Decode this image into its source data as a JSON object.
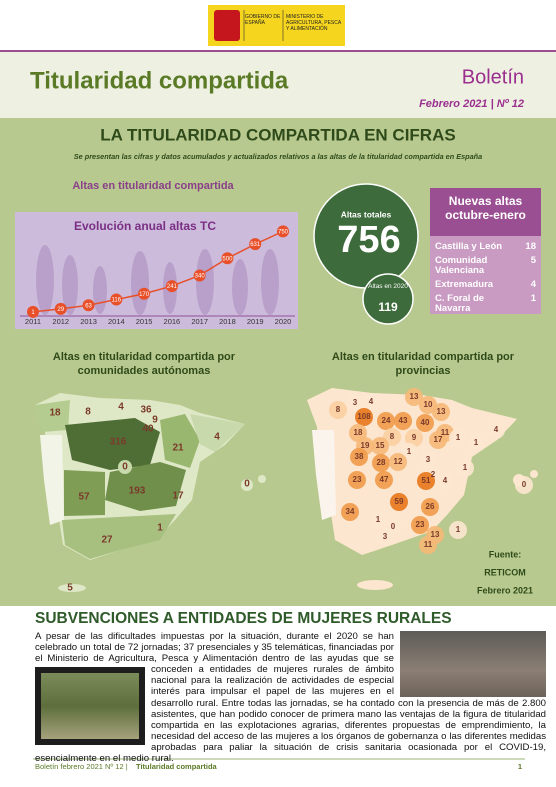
{
  "header": {
    "logo_left": "GOBIERNO DE ESPAÑA",
    "logo_right": "MINISTERIO DE AGRICULTURA, PESCA Y ALIMENTACIÓN",
    "title": "Titularidad compartida",
    "kind": "Boletín",
    "issue": "Febrero 2021 | Nº 12"
  },
  "cifras": {
    "title": "LA TITULARIDAD COMPARTIDA EN CIFRAS",
    "subtitle": "Se presentan las cifras y datos acumulados y actualizados relativos a las altas de la titularidad compartida en España",
    "altas_heading": "Altas en titularidad compartida",
    "total_label": "Altas totales",
    "total": 756,
    "year_label": "Altas en 2020",
    "year_total": 119,
    "nuevas": {
      "title": "Nuevas altas octubre-enero",
      "rows": [
        [
          "Castilla y León",
          18
        ],
        [
          "Comunidad Valenciana",
          5
        ],
        [
          "Extremadura",
          4
        ],
        [
          "C. Foral de Navarra",
          1
        ]
      ]
    }
  },
  "chart_data": {
    "type": "line",
    "title": "Evolución anual altas TC",
    "categories": [
      "2011",
      "2012",
      "2013",
      "2014",
      "2015",
      "2016",
      "2017",
      "2018",
      "2019",
      "2020"
    ],
    "values": [
      1,
      29,
      63,
      116,
      170,
      241,
      340,
      500,
      631,
      750
    ],
    "color": "#e8502a",
    "ylim": [
      0,
      800
    ]
  },
  "maps": {
    "ccaa": {
      "title": "Altas en titularidad compartida por comunidades autónomas",
      "labels": [
        18,
        8,
        4,
        36,
        9,
        40,
        316,
        21,
        4,
        0,
        193,
        57,
        17,
        0,
        1,
        27,
        5
      ]
    },
    "provincias": {
      "title": "Altas en titularidad compartida por provincias",
      "labels": [
        8,
        3,
        4,
        13,
        10,
        13,
        108,
        24,
        43,
        40,
        18,
        11,
        8,
        9,
        17,
        1,
        1,
        4,
        19,
        15,
        1,
        38,
        28,
        12,
        3,
        2,
        23,
        47,
        51,
        4,
        1,
        59,
        26,
        0,
        34,
        1,
        0,
        23,
        13,
        1,
        3,
        11
      ]
    },
    "source": [
      "Fuente:",
      "RETICOM",
      "Febrero 2021"
    ]
  },
  "article": {
    "title": "SUBVENCIONES A ENTIDADES DE MUJERES RURALES",
    "text": "A pesar de las dificultades impuestas por la situación, durante el 2020 se han celebrado un total de 72 jornadas; 37 presenciales y 35 telemáticas, financiadas por el Ministerio de Agricultura, Pesca y Alimentación dentro de las ayudas que se conceden a entidades de mujeres rurales de ámbito nacional para la realización de actividades de especial interés para impulsar el papel de las mujeres en el desarrollo rural. Entre todas las jornadas, se ha contado con la presencia de más de 2.800 asistentes, que han podido conocer de primera mano las ventajas de la figura de titularidad compartida en las explotaciones agrarias, diferentes propuestas de emprendimiento, la necesidad del acceso de las mujeres a los órganos de gobernanza o las diferentes medidas aprobadas para paliar la situación de crisis sanitaria ocasionada por el COVID-19, esencialmente en el medio rural."
  },
  "footer": {
    "text": "Boletín febrero 2021 Nº 12 |",
    "section": "Titularidad compartida",
    "page": 1
  }
}
